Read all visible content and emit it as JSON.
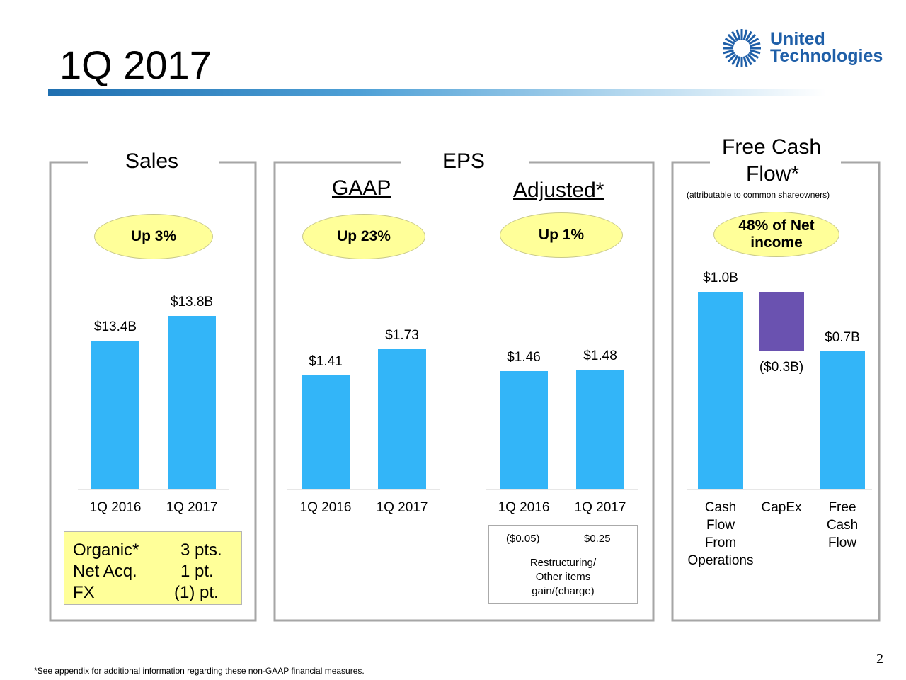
{
  "slide": {
    "title": "1Q 2017",
    "page_number": "2",
    "footnote": "*See appendix for additional information regarding these non-GAAP financial measures.",
    "logo": {
      "line1": "United",
      "line2": "Technologies"
    }
  },
  "panels": {
    "sales": {
      "header": "Sales",
      "badge": "Up 3%",
      "breakdown": [
        {
          "label": "Organic*",
          "value": "3 pts."
        },
        {
          "label": "Net Acq.",
          "value": "1 pt."
        },
        {
          "label": "FX",
          "value": "(1) pt."
        }
      ]
    },
    "eps": {
      "header": "EPS",
      "gaap": {
        "label": "GAAP",
        "badge": "Up 23%"
      },
      "adjusted": {
        "label": "Adjusted*",
        "badge": "Up 1%"
      },
      "restructuring": {
        "values": [
          "($0.05)",
          "$0.25"
        ],
        "line1": "Restructuring/",
        "line2": "Other items",
        "line3": "gain/(charge)"
      }
    },
    "fcf": {
      "header_line1": "Free Cash",
      "header_line2": "Flow*",
      "subheader": "(attributable to common shareowners)",
      "badge_line1": "48% of Net",
      "badge_line2": "income"
    }
  },
  "colors": {
    "bar": "#33b5f8",
    "capex": "#6a52b0",
    "badge": "#ffff99",
    "rule": "#1f6fb0"
  },
  "chart_data": [
    {
      "type": "bar",
      "title": "Sales",
      "categories": [
        "1Q 2016",
        "1Q 2017"
      ],
      "values": [
        13.4,
        13.8
      ],
      "labels": [
        "$13.4B",
        "$13.8B"
      ],
      "ylim": [
        11,
        14.2
      ]
    },
    {
      "type": "bar",
      "title": "EPS GAAP",
      "categories": [
        "1Q 2016",
        "1Q 2017"
      ],
      "values": [
        1.41,
        1.73
      ],
      "labels": [
        "$1.41",
        "$1.73"
      ],
      "ylim": [
        0,
        2.45
      ]
    },
    {
      "type": "bar",
      "title": "EPS Adjusted*",
      "categories": [
        "1Q 2016",
        "1Q 2017"
      ],
      "values": [
        1.46,
        1.48
      ],
      "labels": [
        "$1.46",
        "$1.48"
      ],
      "ylim": [
        0,
        2.45
      ]
    },
    {
      "type": "bar",
      "title": "Free Cash Flow*",
      "categories": [
        "Cash Flow From Operations",
        "CapEx",
        "Free Cash Flow"
      ],
      "category_lines": [
        [
          "Cash",
          "Flow",
          "From",
          "Operations"
        ],
        [
          "CapEx"
        ],
        [
          "Free",
          "Cash",
          "Flow"
        ]
      ],
      "values": [
        1.0,
        -0.3,
        0.7
      ],
      "labels": [
        "$1.0B",
        "($0.3B)",
        "$0.7B"
      ],
      "waterfall": true,
      "ylim": [
        0,
        1.0
      ]
    }
  ]
}
